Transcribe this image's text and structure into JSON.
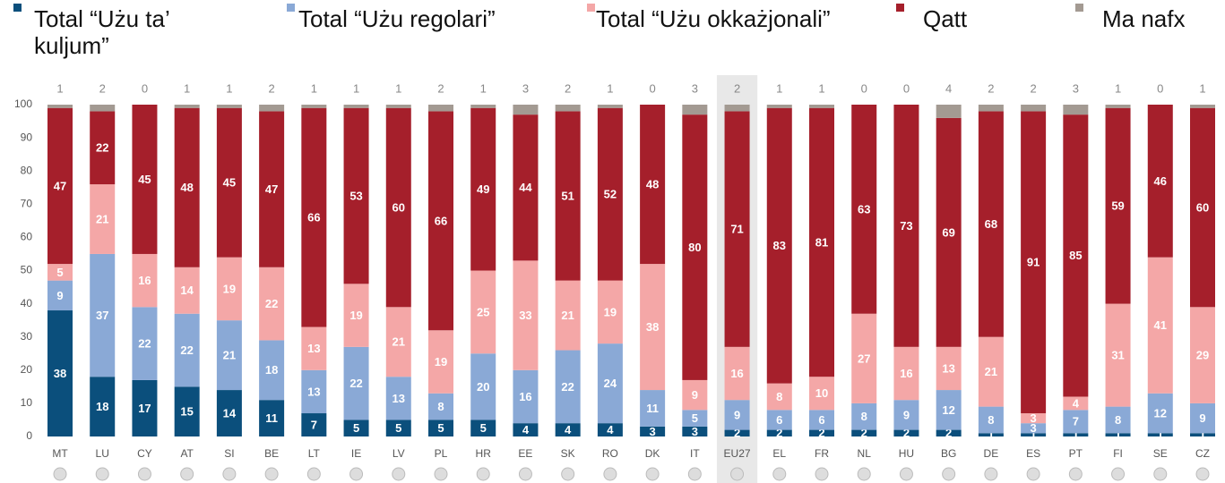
{
  "chart_data": {
    "type": "stacked_bar",
    "categories": [
      "MT",
      "LU",
      "CY",
      "AT",
      "SI",
      "BE",
      "LT",
      "IE",
      "LV",
      "PL",
      "HR",
      "EE",
      "SK",
      "RO",
      "DK",
      "IT",
      "EU27",
      "EL",
      "FR",
      "NL",
      "HU",
      "BG",
      "DE",
      "ES",
      "PT",
      "FI",
      "SE",
      "CZ"
    ],
    "highlight": "EU27",
    "series": [
      {
        "name": "Total “Użu ta’ kuljum”",
        "color": "#0b4f7c",
        "values": [
          38,
          18,
          17,
          15,
          14,
          11,
          7,
          5,
          5,
          5,
          5,
          4,
          4,
          4,
          3,
          3,
          2,
          2,
          2,
          2,
          2,
          2,
          1,
          1,
          1,
          1,
          1,
          1
        ]
      },
      {
        "name": "Total “Użu regolari”",
        "color": "#8aa9d6",
        "values": [
          9,
          37,
          22,
          22,
          21,
          18,
          13,
          22,
          13,
          8,
          20,
          16,
          22,
          24,
          11,
          5,
          9,
          6,
          6,
          8,
          9,
          12,
          8,
          3,
          7,
          8,
          12,
          9
        ]
      },
      {
        "name": "Total “Użu okkażjonali”",
        "color": "#f4a7a7",
        "values": [
          5,
          21,
          16,
          14,
          19,
          22,
          13,
          19,
          21,
          19,
          25,
          33,
          21,
          19,
          38,
          9,
          16,
          8,
          10,
          27,
          16,
          13,
          21,
          3,
          4,
          31,
          41,
          29
        ]
      },
      {
        "name": "Qatt",
        "color": "#a51f2b",
        "values": [
          47,
          22,
          45,
          48,
          45,
          47,
          66,
          53,
          60,
          66,
          49,
          44,
          51,
          52,
          48,
          80,
          71,
          83,
          81,
          63,
          73,
          69,
          68,
          91,
          85,
          59,
          46,
          60
        ]
      },
      {
        "name": "Ma nafx",
        "color": "#a39a92",
        "values": [
          1,
          2,
          0,
          1,
          1,
          2,
          1,
          1,
          1,
          2,
          1,
          3,
          2,
          1,
          0,
          3,
          2,
          1,
          1,
          0,
          0,
          4,
          2,
          2,
          3,
          1,
          0,
          1
        ]
      }
    ],
    "ylim": [
      0,
      100
    ],
    "yticks": [
      0,
      10,
      20,
      30,
      40,
      50,
      60,
      70,
      80,
      90,
      100
    ],
    "grid": false
  }
}
